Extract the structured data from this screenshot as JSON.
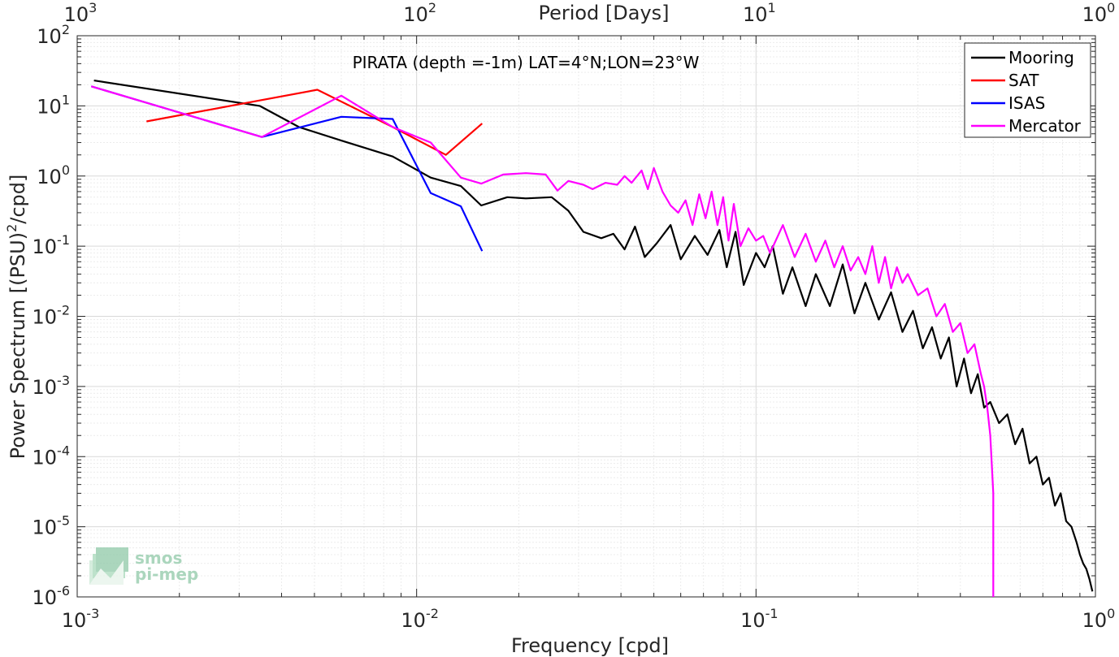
{
  "chart_data": {
    "type": "line",
    "title": "PIRATA (depth =-1m) LAT=4°N;LON=23°W",
    "xlabel": "Frequency [cpd]",
    "ylabel": "Power Spectrum [(PSU)²/cpd]",
    "ylabel_parts": {
      "prefix": "Power Spectrum [(PSU)",
      "sup": "2",
      "suffix": "/cpd]"
    },
    "x2label": "Period [Days]",
    "xscale": "log",
    "yscale": "log",
    "xlim": [
      0.001,
      1
    ],
    "ylim": [
      1e-06,
      100
    ],
    "grid": true,
    "legend_position": "top-right",
    "x_ticks": [
      {
        "base": "10",
        "exp": "-3"
      },
      {
        "base": "10",
        "exp": "-2"
      },
      {
        "base": "10",
        "exp": "-1"
      },
      {
        "base": "10",
        "exp": "0"
      }
    ],
    "x2_ticks": [
      {
        "base": "10",
        "exp": "3"
      },
      {
        "base": "10",
        "exp": "2"
      },
      {
        "base": "10",
        "exp": "1"
      },
      {
        "base": "10",
        "exp": "0"
      }
    ],
    "y_ticks": [
      {
        "base": "10",
        "exp": "-6"
      },
      {
        "base": "10",
        "exp": "-5"
      },
      {
        "base": "10",
        "exp": "-4"
      },
      {
        "base": "10",
        "exp": "-3"
      },
      {
        "base": "10",
        "exp": "-2"
      },
      {
        "base": "10",
        "exp": "-1"
      },
      {
        "base": "10",
        "exp": "0"
      },
      {
        "base": "10",
        "exp": "1"
      },
      {
        "base": "10",
        "exp": "2"
      }
    ],
    "series": [
      {
        "name": "Mooring",
        "color": "#000000",
        "x": [
          0.00112,
          0.00345,
          0.0045,
          0.006,
          0.0085,
          0.011,
          0.0135,
          0.0155,
          0.0185,
          0.021,
          0.025,
          0.028,
          0.031,
          0.035,
          0.038,
          0.041,
          0.044,
          0.047,
          0.051,
          0.056,
          0.06,
          0.066,
          0.072,
          0.078,
          0.082,
          0.087,
          0.092,
          0.1,
          0.106,
          0.112,
          0.12,
          0.128,
          0.14,
          0.15,
          0.165,
          0.18,
          0.195,
          0.21,
          0.23,
          0.25,
          0.27,
          0.29,
          0.31,
          0.33,
          0.35,
          0.37,
          0.39,
          0.41,
          0.43,
          0.45,
          0.47,
          0.49,
          0.52,
          0.55,
          0.58,
          0.61,
          0.64,
          0.67,
          0.7,
          0.73,
          0.76,
          0.79,
          0.82,
          0.85,
          0.88,
          0.9,
          0.92,
          0.94,
          0.96,
          0.98
        ],
        "y": [
          23,
          10,
          5,
          3.2,
          1.9,
          0.95,
          0.72,
          0.38,
          0.5,
          0.48,
          0.5,
          0.32,
          0.16,
          0.13,
          0.15,
          0.09,
          0.19,
          0.07,
          0.11,
          0.2,
          0.065,
          0.14,
          0.075,
          0.17,
          0.05,
          0.16,
          0.028,
          0.08,
          0.05,
          0.1,
          0.021,
          0.05,
          0.014,
          0.04,
          0.014,
          0.055,
          0.011,
          0.03,
          0.009,
          0.022,
          0.006,
          0.012,
          0.0035,
          0.007,
          0.0025,
          0.005,
          0.001,
          0.0025,
          0.0008,
          0.0015,
          0.0005,
          0.0006,
          0.0003,
          0.0004,
          0.00015,
          0.00025,
          8e-05,
          0.0001,
          4e-05,
          5e-05,
          2e-05,
          3e-05,
          1.2e-05,
          1e-05,
          6e-06,
          4e-06,
          3e-06,
          2.5e-06,
          1.8e-06,
          1.2e-06
        ]
      },
      {
        "name": "SAT",
        "color": "#ff0000",
        "x": [
          0.0016,
          0.0051,
          0.0085,
          0.0122,
          0.0156
        ],
        "y": [
          6,
          17,
          5,
          2,
          5.6
        ]
      },
      {
        "name": "ISAS",
        "color": "#0000ff",
        "x": [
          0.0011,
          0.0035,
          0.006,
          0.0085,
          0.011,
          0.0135,
          0.0156
        ],
        "y": [
          19,
          3.6,
          7,
          6.5,
          0.57,
          0.37,
          0.085
        ]
      },
      {
        "name": "Mercator",
        "color": "#ff00ff",
        "x": [
          0.0011,
          0.0035,
          0.006,
          0.0085,
          0.011,
          0.0135,
          0.0155,
          0.018,
          0.021,
          0.024,
          0.026,
          0.028,
          0.031,
          0.033,
          0.036,
          0.039,
          0.041,
          0.043,
          0.046,
          0.048,
          0.05,
          0.053,
          0.056,
          0.059,
          0.062,
          0.065,
          0.068,
          0.071,
          0.074,
          0.077,
          0.08,
          0.083,
          0.086,
          0.09,
          0.095,
          0.1,
          0.105,
          0.11,
          0.12,
          0.13,
          0.14,
          0.15,
          0.16,
          0.17,
          0.18,
          0.19,
          0.2,
          0.21,
          0.22,
          0.23,
          0.24,
          0.25,
          0.26,
          0.27,
          0.28,
          0.3,
          0.32,
          0.34,
          0.36,
          0.38,
          0.4,
          0.42,
          0.44,
          0.46,
          0.47,
          0.48,
          0.49,
          0.5,
          0.5
        ],
        "y": [
          19,
          3.6,
          14,
          5,
          3,
          0.95,
          0.78,
          1.05,
          1.1,
          1.05,
          0.62,
          0.85,
          0.75,
          0.65,
          0.8,
          0.75,
          1.0,
          0.8,
          1.2,
          0.65,
          1.3,
          0.6,
          0.38,
          0.3,
          0.45,
          0.2,
          0.55,
          0.25,
          0.6,
          0.2,
          0.5,
          0.12,
          0.4,
          0.1,
          0.18,
          0.12,
          0.14,
          0.08,
          0.2,
          0.07,
          0.15,
          0.06,
          0.12,
          0.05,
          0.1,
          0.045,
          0.07,
          0.04,
          0.1,
          0.03,
          0.07,
          0.025,
          0.05,
          0.03,
          0.04,
          0.02,
          0.025,
          0.01,
          0.015,
          0.006,
          0.008,
          0.003,
          0.004,
          0.0015,
          0.001,
          0.0005,
          0.0002,
          3e-05,
          1e-06
        ]
      }
    ]
  },
  "logo": {
    "line1": "smos",
    "line2": "pi-mep"
  }
}
